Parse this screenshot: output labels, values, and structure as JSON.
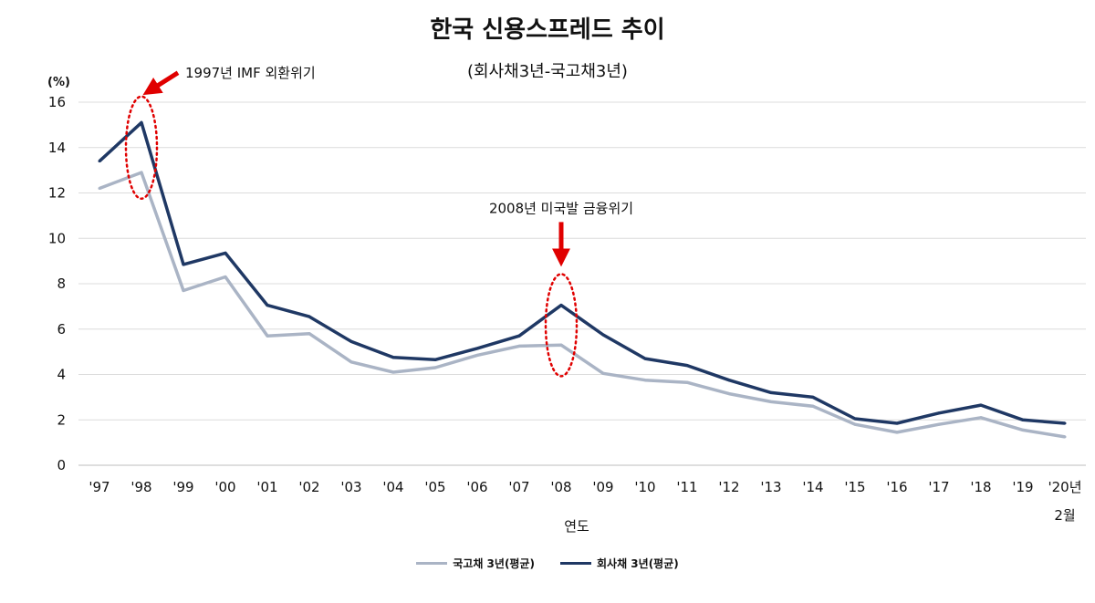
{
  "chart_data": {
    "type": "line",
    "title": "한국 신용스프레드 추이",
    "subtitle": "(회사채3년-국고채3년)",
    "unit_label": "(%)",
    "xlabel": "연도",
    "ylabel": "",
    "ylim": [
      0,
      16
    ],
    "yticks": [
      0,
      2,
      4,
      6,
      8,
      10,
      12,
      14,
      16
    ],
    "grid": true,
    "legend_position": "bottom",
    "categories": [
      "'97",
      "'98",
      "'99",
      "'00",
      "'01",
      "'02",
      "'03",
      "'04",
      "'05",
      "'06",
      "'07",
      "'08",
      "'09",
      "'10",
      "'11",
      "'12",
      "'13",
      "'14",
      "'15",
      "'16",
      "'17",
      "'18",
      "'19",
      "'20년 2월"
    ],
    "tick_labels": [
      "'97",
      "'98",
      "'99",
      "'00",
      "'01",
      "'02",
      "'03",
      "'04",
      "'05",
      "'06",
      "'07",
      "'08",
      "'09",
      "'10",
      "'11",
      "'12",
      "'13",
      "'14",
      "'15",
      "'16",
      "'17",
      "'18",
      "'19",
      "'20년"
    ],
    "last_tick_line2": "2월",
    "series": [
      {
        "name": "국고채 3년(평균)",
        "color": "#aab4c5",
        "values": [
          12.2,
          12.9,
          7.7,
          8.3,
          5.7,
          5.8,
          4.55,
          4.1,
          4.3,
          4.85,
          5.25,
          5.3,
          4.05,
          3.75,
          3.65,
          3.15,
          2.8,
          2.6,
          1.8,
          1.45,
          1.8,
          2.1,
          1.55,
          1.25
        ]
      },
      {
        "name": "회사채 3년(평균)",
        "color": "#1f3864",
        "values": [
          13.4,
          15.1,
          8.85,
          9.35,
          7.05,
          6.55,
          5.45,
          4.75,
          4.65,
          5.15,
          5.7,
          7.05,
          5.75,
          4.7,
          4.4,
          3.75,
          3.2,
          3.0,
          2.05,
          1.85,
          2.3,
          2.65,
          2.0,
          1.85
        ]
      }
    ],
    "annotations": [
      {
        "text": "1997년 IMF 외환위기",
        "category": "'98"
      },
      {
        "text": "2008년 미국발 금융위기",
        "category": "'08"
      }
    ],
    "annotation_color": "#e00000"
  }
}
